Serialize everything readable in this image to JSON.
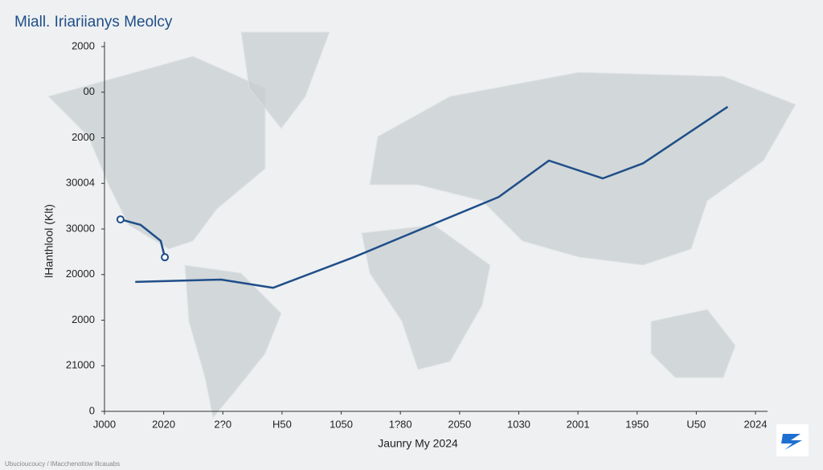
{
  "chart_data": {
    "type": "line",
    "title": "Miall. Iriariianys Meolcy",
    "ylabel": "lHanthlool (Klt)",
    "xlabel": "Jaunry My 2024",
    "footer": "Ubucioucoucy / lMacchenotiow lllcauabs",
    "xlim": [
      0,
      11
    ],
    "xticks": [
      {
        "value": 0,
        "label": "J000"
      },
      {
        "value": 1,
        "label": "2020"
      },
      {
        "value": 2,
        "label": "2?0"
      },
      {
        "value": 3,
        "label": "H50"
      },
      {
        "value": 4,
        "label": "1050"
      },
      {
        "value": 5,
        "label": "1?80"
      },
      {
        "value": 6,
        "label": "2050"
      },
      {
        "value": 7,
        "label": "1030"
      },
      {
        "value": 8,
        "label": "2001"
      },
      {
        "value": 9,
        "label": "1950"
      },
      {
        "value": 10,
        "label": "U50"
      },
      {
        "value": 11,
        "label": "2024"
      }
    ],
    "ylim": [
      0,
      8
    ],
    "yticks": [
      {
        "value": 0,
        "label": "0"
      },
      {
        "value": 1,
        "label": "21000"
      },
      {
        "value": 2,
        "label": "2000"
      },
      {
        "value": 3,
        "label": "20000"
      },
      {
        "value": 4,
        "label": "30000"
      },
      {
        "value": 5,
        "label": "30004"
      },
      {
        "value": 6,
        "label": "2000"
      },
      {
        "value": 7,
        "label": "00"
      },
      {
        "value": 8,
        "label": "2000"
      }
    ],
    "series": [
      {
        "color": "#1f4e89",
        "x": [
          0.27,
          0.61,
          0.95,
          1.02
        ],
        "values": [
          4.21,
          4.09,
          3.74,
          3.38
        ]
      },
      {
        "color": "#1f4e89",
        "x": [
          0.52,
          1.97,
          2.85,
          4.21,
          5.43,
          6.66,
          7.51,
          8.42,
          9.1,
          10.53
        ],
        "values": [
          2.84,
          2.89,
          2.71,
          3.38,
          4.04,
          4.7,
          5.5,
          5.11,
          5.44,
          6.68
        ]
      }
    ]
  }
}
